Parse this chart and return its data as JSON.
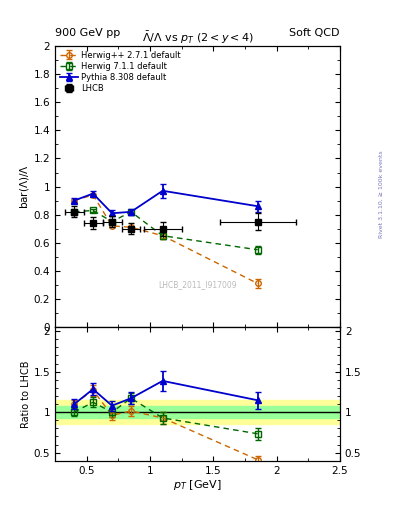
{
  "title_main": "$\\bar{\\Lambda}/\\Lambda$ vs $p_T$ $(2 < y < 4)$",
  "header_left": "900 GeV pp",
  "header_right": "Soft QCD",
  "right_label": "Rivet 3.1.10, ≥ 100k events",
  "watermark": "LHCB_2011_I917009",
  "xlabel": "$p_T$ [GeV]",
  "ylabel_main": "bar($\\Lambda$)/$\\Lambda$",
  "ylabel_ratio": "Ratio to LHCB",
  "xlim": [
    0.25,
    2.5
  ],
  "ylim_main": [
    0.0,
    2.0
  ],
  "ylim_ratio": [
    0.4,
    2.05
  ],
  "lhcb_x": [
    0.4,
    0.55,
    0.7,
    0.85,
    1.1,
    1.85
  ],
  "lhcb_y": [
    0.82,
    0.74,
    0.75,
    0.7,
    0.7,
    0.75
  ],
  "lhcb_yerr": [
    0.04,
    0.04,
    0.04,
    0.04,
    0.05,
    0.06
  ],
  "lhcb_xerr": [
    0.075,
    0.075,
    0.075,
    0.075,
    0.15,
    0.3
  ],
  "herwig_x": [
    0.4,
    0.55,
    0.7,
    0.85,
    1.1,
    1.85
  ],
  "herwig_y": [
    0.9,
    0.94,
    0.72,
    0.71,
    0.65,
    0.31
  ],
  "herwig_yerr": [
    0.01,
    0.01,
    0.01,
    0.01,
    0.02,
    0.03
  ],
  "herwig711_x": [
    0.4,
    0.55,
    0.7,
    0.85,
    1.1,
    1.85
  ],
  "herwig711_y": [
    0.82,
    0.83,
    0.75,
    0.82,
    0.65,
    0.55
  ],
  "herwig711_yerr": [
    0.01,
    0.01,
    0.01,
    0.01,
    0.02,
    0.03
  ],
  "pythia_x": [
    0.4,
    0.55,
    0.7,
    0.85,
    1.1,
    1.85
  ],
  "pythia_y": [
    0.9,
    0.95,
    0.81,
    0.82,
    0.97,
    0.86
  ],
  "pythia_yerr": [
    0.02,
    0.02,
    0.02,
    0.02,
    0.05,
    0.04
  ],
  "lhcb_color": "#000000",
  "herwig_color": "#cc6600",
  "herwig711_color": "#006600",
  "pythia_color": "#0000cc",
  "band_inner_color": "#99ff99",
  "band_outer_color": "#ffff99"
}
